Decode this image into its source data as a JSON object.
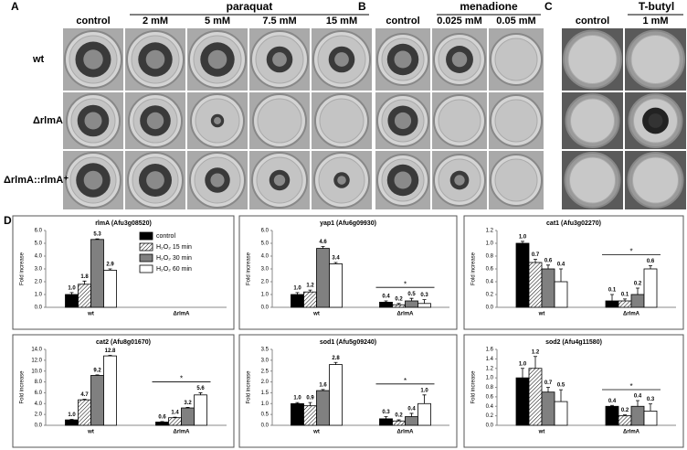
{
  "panels": [
    {
      "letter": "A",
      "header": "paraquat",
      "columns": [
        "control",
        "2 mM",
        "5 mM",
        "7.5 mM",
        "15 mM"
      ]
    },
    {
      "letter": "B",
      "header": "menadione",
      "columns": [
        "control",
        "0.025 mM",
        "0.05 mM"
      ]
    },
    {
      "letter": "C",
      "header": "T-butyl",
      "columns": [
        "control",
        "1 mM"
      ]
    }
  ],
  "rows": [
    "wt",
    "ΔrlmA",
    "ΔrlmA::rlmA⁺"
  ],
  "panel_d": "D",
  "chart_data": [
    {
      "type": "bar",
      "title": "rlmA (Afu3g08520)",
      "y_label": "Fold increase",
      "categories": [
        "wt",
        "ΔrlmA"
      ],
      "legend": "upper-center",
      "ylim": [
        0,
        6
      ],
      "yticks": [
        {
          "value": 0,
          "label": "0.0"
        },
        {
          "value": 1,
          "label": "1.0"
        },
        {
          "value": 2,
          "label": "2.0"
        },
        {
          "value": 3,
          "label": "3.0"
        },
        {
          "value": 4,
          "label": "4.0"
        },
        {
          "value": 5,
          "label": "5.0"
        },
        {
          "value": 6,
          "label": "6.0"
        }
      ],
      "series": [
        {
          "name": "control",
          "color": "#000000",
          "values": [
            1.0,
            null
          ],
          "value_labels": [
            "1.0",
            null
          ],
          "errors": [
            0.15,
            null
          ]
        },
        {
          "name": "H₂O₂ 15 min",
          "color": "#ffffff",
          "hatch": true,
          "values": [
            1.8,
            null
          ],
          "value_labels": [
            "1.8",
            null
          ],
          "errors": [
            0.25,
            null
          ]
        },
        {
          "name": "H₂O₂ 30 min",
          "color": "#808080",
          "values": [
            5.3,
            null
          ],
          "value_labels": [
            "5.3",
            null
          ],
          "errors": [
            0.05,
            null
          ]
        },
        {
          "name": "H₂O₂ 60 min",
          "color": "#ffffff",
          "values": [
            2.9,
            null
          ],
          "value_labels": [
            "2.9",
            null
          ],
          "errors": [
            0.1,
            null
          ]
        }
      ]
    },
    {
      "type": "bar",
      "title": "yap1 (Afu6g09930)",
      "y_label": "Fold increase",
      "categories": [
        "wt",
        "ΔrlmA"
      ],
      "annotation": "*",
      "ylim": [
        0,
        6
      ],
      "yticks": [
        {
          "value": 0,
          "label": "0.0"
        },
        {
          "value": 1,
          "label": "1.0"
        },
        {
          "value": 2,
          "label": "2.0"
        },
        {
          "value": 3,
          "label": "3.0"
        },
        {
          "value": 4,
          "label": "4.0"
        },
        {
          "value": 5,
          "label": "5.0"
        },
        {
          "value": 6,
          "label": "6.0"
        }
      ],
      "series": [
        {
          "color": "#000000",
          "values": [
            1.0,
            0.4
          ],
          "value_labels": [
            "1.0",
            "0.4"
          ],
          "errors": [
            0.15,
            0.1
          ]
        },
        {
          "color": "#ffffff",
          "hatch": true,
          "values": [
            1.2,
            0.2
          ],
          "value_labels": [
            "1.2",
            "0.2"
          ],
          "errors": [
            0.15,
            0.1
          ]
        },
        {
          "color": "#808080",
          "values": [
            4.6,
            0.5
          ],
          "value_labels": [
            "4.6",
            "0.5"
          ],
          "errors": [
            0.15,
            0.2
          ]
        },
        {
          "color": "#ffffff",
          "values": [
            3.4,
            0.3
          ],
          "value_labels": [
            "3.4",
            "0.3"
          ],
          "errors": [
            0.1,
            0.3
          ]
        }
      ]
    },
    {
      "type": "bar",
      "title": "cat1 (Afu3g02270)",
      "y_label": "Fold increase",
      "categories": [
        "wt",
        "ΔrlmA"
      ],
      "annotation": "*",
      "ylim": [
        0,
        1.2
      ],
      "yticks": [
        {
          "value": 0,
          "label": "0.0"
        },
        0.2,
        0.4,
        0.6,
        0.8,
        {
          "value": 1,
          "label": "1.0"
        },
        1.2
      ],
      "series": [
        {
          "color": "#000000",
          "values": [
            1.0,
            0.1
          ],
          "value_labels": [
            "1.0",
            "0.1"
          ],
          "errors": [
            0.03,
            0.1
          ]
        },
        {
          "color": "#ffffff",
          "hatch": true,
          "values": [
            0.7,
            0.1
          ],
          "value_labels": [
            "0.7",
            "0.1"
          ],
          "errors": [
            0.05,
            0.03
          ]
        },
        {
          "color": "#808080",
          "values": [
            0.6,
            0.2
          ],
          "value_labels": [
            "0.6",
            "0.2"
          ],
          "errors": [
            0.06,
            0.1
          ]
        },
        {
          "color": "#ffffff",
          "values": [
            0.4,
            0.6
          ],
          "value_labels": [
            "0.4",
            "0.6"
          ],
          "errors": [
            0.2,
            0.05
          ]
        }
      ]
    },
    {
      "type": "bar",
      "title": "cat2 (Afu8g01670)",
      "y_label": "Fold increase",
      "categories": [
        "wt",
        "ΔrlmA"
      ],
      "annotation": "*",
      "ylim": [
        0,
        14
      ],
      "yticks": [
        {
          "value": 0,
          "label": "0.0"
        },
        {
          "value": 2,
          "label": "2.0"
        },
        {
          "value": 4,
          "label": "4.0"
        },
        {
          "value": 6,
          "label": "6.0"
        },
        {
          "value": 8,
          "label": "8.0"
        },
        {
          "value": 10,
          "label": "10.0"
        },
        {
          "value": 12,
          "label": "12.0"
        },
        {
          "value": 14,
          "label": "14.0"
        }
      ],
      "series": [
        {
          "color": "#000000",
          "values": [
            1.0,
            0.6
          ],
          "value_labels": [
            "1.0",
            "0.6"
          ],
          "errors": [
            0.1,
            0.1
          ]
        },
        {
          "color": "#ffffff",
          "hatch": true,
          "values": [
            4.7,
            1.4
          ],
          "value_labels": [
            "4.7",
            "1.4"
          ],
          "errors": [
            0.1,
            0.1
          ]
        },
        {
          "color": "#808080",
          "values": [
            9.2,
            3.2
          ],
          "value_labels": [
            "9.2",
            "3.2"
          ],
          "errors": [
            0.1,
            0.1
          ]
        },
        {
          "color": "#ffffff",
          "values": [
            12.8,
            5.6
          ],
          "value_labels": [
            "12.8",
            "5.6"
          ],
          "errors": [
            0.1,
            0.4
          ]
        }
      ]
    },
    {
      "type": "bar",
      "title": "sod1 (Afu5g09240)",
      "y_label": "Fold increase",
      "categories": [
        "wt",
        "ΔrlmA"
      ],
      "annotation": "*",
      "ylim": [
        0,
        3.5
      ],
      "yticks": [
        {
          "value": 0,
          "label": "0.0"
        },
        0.5,
        {
          "value": 1,
          "label": "1.0"
        },
        1.5,
        {
          "value": 2,
          "label": "2.0"
        },
        2.5,
        {
          "value": 3,
          "label": "3.0"
        },
        3.5
      ],
      "series": [
        {
          "color": "#000000",
          "values": [
            1.0,
            0.3
          ],
          "value_labels": [
            "1.0",
            "0.3"
          ],
          "errors": [
            0.05,
            0.1
          ]
        },
        {
          "color": "#ffffff",
          "hatch": true,
          "values": [
            0.9,
            0.2
          ],
          "value_labels": [
            "0.9",
            "0.2"
          ],
          "errors": [
            0.15,
            0.05
          ]
        },
        {
          "color": "#808080",
          "values": [
            1.6,
            0.4
          ],
          "value_labels": [
            "1.6",
            "0.4"
          ],
          "errors": [
            0.05,
            0.15
          ]
        },
        {
          "color": "#ffffff",
          "values": [
            2.8,
            1.0
          ],
          "value_labels": [
            "2.8",
            "1.0"
          ],
          "errors": [
            0.1,
            0.4
          ]
        }
      ]
    },
    {
      "type": "bar",
      "title": "sod2 (Afu4g11580)",
      "y_label": "Fold increase",
      "categories": [
        "wt",
        "ΔrlmA"
      ],
      "annotation": "*",
      "ylim": [
        0,
        1.6
      ],
      "yticks": [
        {
          "value": 0,
          "label": "0.0"
        },
        0.2,
        0.4,
        0.6,
        0.8,
        {
          "value": 1,
          "label": "1.0"
        },
        1.2,
        1.4,
        1.6
      ],
      "series": [
        {
          "color": "#000000",
          "values": [
            1.0,
            0.4
          ],
          "value_labels": [
            "1.0",
            "0.4"
          ],
          "errors": [
            0.2,
            0.02
          ]
        },
        {
          "color": "#ffffff",
          "hatch": true,
          "values": [
            1.2,
            0.2
          ],
          "value_labels": [
            "1.2",
            "0.2"
          ],
          "errors": [
            0.25,
            0.02
          ]
        },
        {
          "color": "#808080",
          "values": [
            0.7,
            0.4
          ],
          "value_labels": [
            "0.7",
            "0.4"
          ],
          "errors": [
            0.1,
            0.12
          ]
        },
        {
          "color": "#ffffff",
          "values": [
            0.5,
            0.3
          ],
          "value_labels": [
            "0.5",
            "0.3"
          ],
          "errors": [
            0.25,
            0.15
          ]
        }
      ]
    }
  ]
}
